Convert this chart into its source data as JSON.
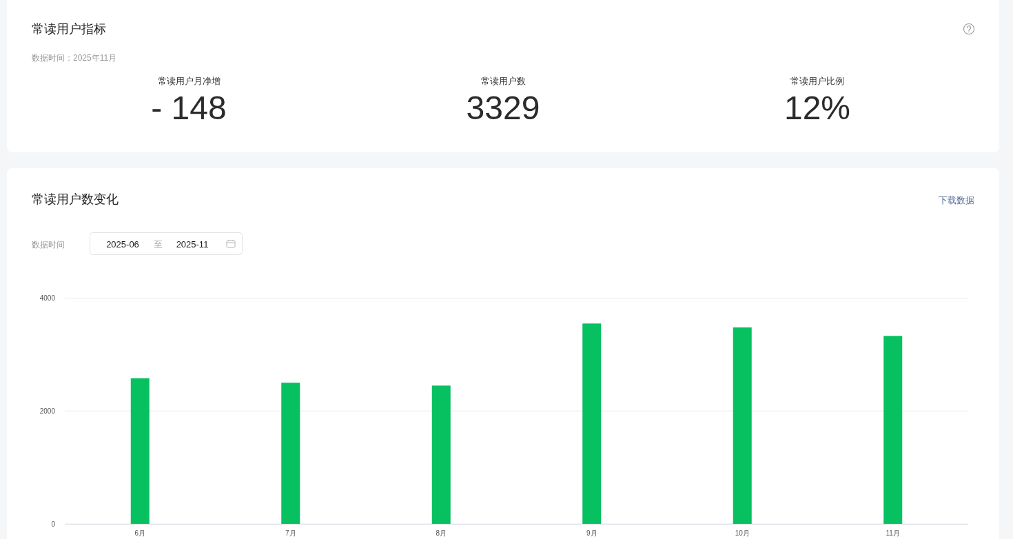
{
  "chart_data": [
    {
      "type": "other",
      "title": "常读用户指标",
      "subtitle": "数据时间：2025年11月",
      "categories": [
        "常读用户月净增",
        "常读用户数",
        "常读用户比例"
      ],
      "value_labels": [
        "- 148",
        "3329",
        "12%"
      ]
    },
    {
      "type": "bar",
      "title": "常读用户数变化",
      "categories": [
        "6月",
        "7月",
        "8月",
        "9月",
        "10月",
        "11月"
      ],
      "values": [
        2580,
        2500,
        2450,
        3550,
        3480,
        3330
      ],
      "color": "#07c160",
      "ylim": [
        0,
        4000
      ],
      "yticks": [
        0,
        2000,
        4000
      ],
      "grid": "y",
      "annotations": [
        "下载数据",
        "数据时间",
        "2025-06",
        "至",
        "2025-11"
      ]
    }
  ]
}
